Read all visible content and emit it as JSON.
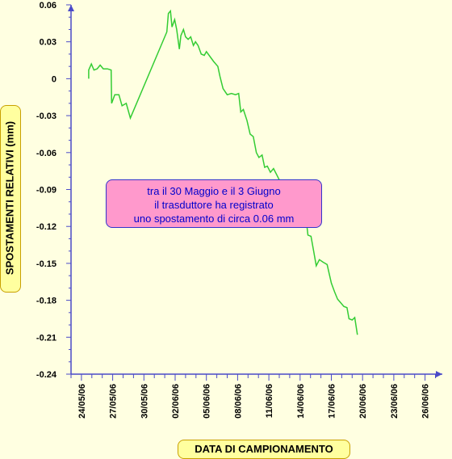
{
  "chart_data": {
    "type": "line",
    "title": "",
    "xlabel": "DATA DI CAMPIONAMENTO",
    "ylabel": "SPOSTAMENTI RELATIVI (mm)",
    "ylim": [
      -0.24,
      0.06
    ],
    "yticks": [
      "0.06",
      "0.03",
      "0",
      "-0.03",
      "-0.06",
      "-0.09",
      "-0.12",
      "-0.15",
      "-0.18",
      "-0.21",
      "-0.24"
    ],
    "xlim": [
      0,
      28
    ],
    "xticks": [
      {
        "label": "24/05/06",
        "day": 1
      },
      {
        "label": "27/05/06",
        "day": 4
      },
      {
        "label": "30/05/06",
        "day": 7
      },
      {
        "label": "02/06/06",
        "day": 10
      },
      {
        "label": "05/06/06",
        "day": 13
      },
      {
        "label": "08/06/06",
        "day": 16
      },
      {
        "label": "11/06/06",
        "day": 19
      },
      {
        "label": "14/06/06",
        "day": 22
      },
      {
        "label": "17/06/06",
        "day": 25
      },
      {
        "label": "20/06/06",
        "day": 28
      },
      {
        "label": "23/06/06",
        "day": 31
      },
      {
        "label": "26/06/06",
        "day": 34
      }
    ],
    "grid": false,
    "line_color": "#33cc33",
    "series": [
      {
        "name": "",
        "points": [
          [
            1.7,
            0.0
          ],
          [
            1.7,
            0.007
          ],
          [
            1.95,
            0.012
          ],
          [
            2.2,
            0.007
          ],
          [
            2.5,
            0.008
          ],
          [
            2.8,
            0.011
          ],
          [
            3.1,
            0.008
          ],
          [
            3.5,
            0.008
          ],
          [
            3.85,
            0.007
          ],
          [
            3.9,
            -0.02
          ],
          [
            4.2,
            -0.013
          ],
          [
            4.6,
            -0.013
          ],
          [
            4.9,
            -0.022
          ],
          [
            5.3,
            -0.02
          ],
          [
            5.7,
            -0.032
          ],
          [
            9.2,
            0.038
          ],
          [
            9.35,
            0.053
          ],
          [
            9.55,
            0.055
          ],
          [
            9.7,
            0.042
          ],
          [
            9.95,
            0.048
          ],
          [
            10.15,
            0.04
          ],
          [
            10.4,
            0.024
          ],
          [
            10.55,
            0.035
          ],
          [
            10.8,
            0.04
          ],
          [
            11.0,
            0.034
          ],
          [
            11.25,
            0.032
          ],
          [
            11.5,
            0.034
          ],
          [
            11.75,
            0.027
          ],
          [
            11.95,
            0.03
          ],
          [
            12.2,
            0.027
          ],
          [
            12.5,
            0.02
          ],
          [
            12.8,
            0.019
          ],
          [
            13.0,
            0.022
          ],
          [
            13.35,
            0.018
          ],
          [
            13.7,
            0.014
          ],
          [
            14.1,
            0.01
          ],
          [
            14.3,
            0.002
          ],
          [
            14.6,
            -0.008
          ],
          [
            15.0,
            -0.013
          ],
          [
            15.4,
            -0.012
          ],
          [
            15.8,
            -0.013
          ],
          [
            16.1,
            -0.012
          ],
          [
            16.3,
            -0.027
          ],
          [
            16.55,
            -0.025
          ],
          [
            16.9,
            -0.034
          ],
          [
            17.2,
            -0.045
          ],
          [
            17.5,
            -0.047
          ],
          [
            17.8,
            -0.06
          ],
          [
            18.05,
            -0.064
          ],
          [
            18.35,
            -0.062
          ],
          [
            18.6,
            -0.072
          ],
          [
            18.85,
            -0.071
          ],
          [
            19.15,
            -0.076
          ],
          [
            19.45,
            -0.073
          ],
          [
            19.75,
            -0.078
          ],
          [
            20.05,
            -0.083
          ],
          [
            20.35,
            -0.096
          ],
          [
            20.55,
            -0.1
          ],
          [
            20.8,
            -0.098
          ],
          [
            21.0,
            -0.104
          ],
          [
            21.3,
            -0.105
          ],
          [
            21.5,
            -0.114
          ],
          [
            21.8,
            -0.103
          ],
          [
            22.0,
            -0.1
          ],
          [
            22.25,
            -0.107
          ],
          [
            22.5,
            -0.108
          ],
          [
            22.75,
            -0.127
          ],
          [
            23.05,
            -0.128
          ],
          [
            23.3,
            -0.14
          ],
          [
            23.55,
            -0.152
          ],
          [
            23.85,
            -0.147
          ],
          [
            24.2,
            -0.149
          ],
          [
            24.6,
            -0.151
          ],
          [
            25.0,
            -0.166
          ],
          [
            25.3,
            -0.173
          ],
          [
            25.6,
            -0.179
          ],
          [
            25.9,
            -0.182
          ],
          [
            26.2,
            -0.185
          ],
          [
            26.5,
            -0.186
          ],
          [
            26.7,
            -0.195
          ],
          [
            27.0,
            -0.196
          ],
          [
            27.25,
            -0.194
          ],
          [
            27.5,
            -0.208
          ]
        ]
      }
    ],
    "annotation": {
      "lines": [
        "tra il 30 Maggio e il 3 Giugno",
        "il trasduttore ha registrato",
        "uno spostamento di circa 0.06 mm"
      ]
    }
  }
}
